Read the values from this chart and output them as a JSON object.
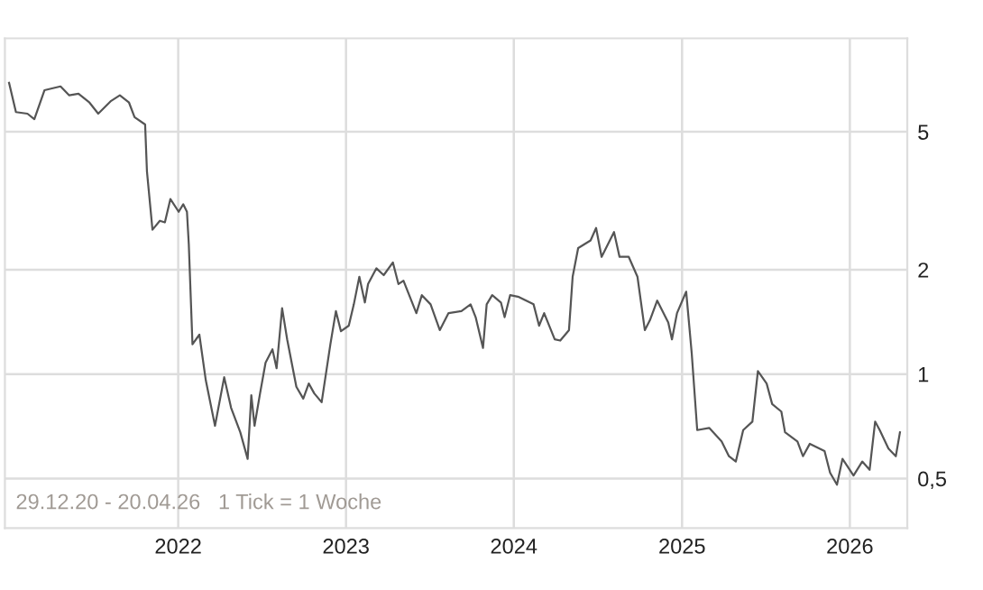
{
  "chart_data": {
    "type": "line",
    "log": "y",
    "grid": true,
    "marker": "none",
    "line_style": "solid",
    "annotations": [
      "29.12.20 - 20.04.26",
      "1 Tick = 1 Woche"
    ],
    "xlim": [
      "2020-12-20",
      "2026-05-06"
    ],
    "xticks": [
      {
        "value": "2022-01-01",
        "label": "2022"
      },
      {
        "value": "2023-01-01",
        "label": "2023"
      },
      {
        "value": "2024-01-01",
        "label": "2024"
      },
      {
        "value": "2025-01-01",
        "label": "2025"
      },
      {
        "value": "2026-01-01",
        "label": "2026"
      }
    ],
    "ylim": [
      0.36,
      9.3
    ],
    "yticks": [
      {
        "value": 0.5,
        "label": "0,5"
      },
      1,
      2,
      5
    ],
    "series": [
      {
        "color": "#555555",
        "x": [
          "2020-12-29",
          "2021-01-13",
          "2021-02-07",
          "2021-02-22",
          "2021-03-16",
          "2021-04-20",
          "2021-05-09",
          "2021-05-29",
          "2021-06-22",
          "2021-07-11",
          "2021-08-08",
          "2021-08-27",
          "2021-09-16",
          "2021-09-28",
          "2021-10-21",
          "2021-10-25",
          "2021-11-06",
          "2021-11-22",
          "2021-12-03",
          "2021-12-15",
          "2022-01-02",
          "2022-01-12",
          "2022-01-20",
          "2022-01-24",
          "2022-02-01",
          "2022-02-16",
          "2022-03-02",
          "2022-03-22",
          "2022-04-11",
          "2022-04-26",
          "2022-05-16",
          "2022-06-01",
          "2022-06-09",
          "2022-06-16",
          "2022-06-28",
          "2022-07-10",
          "2022-07-25",
          "2022-08-03",
          "2022-08-15",
          "2022-08-26",
          "2022-09-15",
          "2022-09-30",
          "2022-10-12",
          "2022-10-24",
          "2022-11-09",
          "2022-11-28",
          "2022-12-10",
          "2022-12-21",
          "2023-01-07",
          "2023-01-18",
          "2023-01-30",
          "2023-02-11",
          "2023-02-18",
          "2023-03-08",
          "2023-03-24",
          "2023-04-13",
          "2023-04-25",
          "2023-05-06",
          "2023-06-03",
          "2023-06-15",
          "2023-07-04",
          "2023-07-24",
          "2023-08-12",
          "2023-09-09",
          "2023-09-29",
          "2023-10-10",
          "2023-10-26",
          "2023-11-03",
          "2023-11-15",
          "2023-12-04",
          "2023-12-12",
          "2023-12-24",
          "2024-01-12",
          "2024-02-13",
          "2024-02-25",
          "2024-03-07",
          "2024-03-30",
          "2024-04-11",
          "2024-04-30",
          "2024-05-08",
          "2024-05-20",
          "2024-06-16",
          "2024-06-28",
          "2024-07-10",
          "2024-08-06",
          "2024-08-18",
          "2024-09-07",
          "2024-09-26",
          "2024-10-12",
          "2024-10-23",
          "2024-11-08",
          "2024-12-02",
          "2024-12-10",
          "2024-12-21",
          "2025-01-10",
          "2025-01-22",
          "2025-02-03",
          "2025-03-01",
          "2025-03-28",
          "2025-04-13",
          "2025-04-28",
          "2025-05-14",
          "2025-06-03",
          "2025-06-15",
          "2025-07-04",
          "2025-07-16",
          "2025-08-05",
          "2025-08-13",
          "2025-09-09",
          "2025-09-21",
          "2025-10-06",
          "2025-11-07",
          "2025-11-19",
          "2025-12-04",
          "2025-12-16",
          "2026-01-09",
          "2026-01-28",
          "2026-02-13",
          "2026-02-25",
          "2026-03-07",
          "2026-03-26",
          "2026-04-11",
          "2026-04-20"
        ],
        "values": [
          6.92,
          5.7,
          5.64,
          5.44,
          6.59,
          6.76,
          6.37,
          6.44,
          6.07,
          5.64,
          6.14,
          6.37,
          6.07,
          5.51,
          5.25,
          3.84,
          2.61,
          2.77,
          2.74,
          3.2,
          2.94,
          3.09,
          2.94,
          2.37,
          1.22,
          1.3,
          0.96,
          0.71,
          0.98,
          0.8,
          0.68,
          0.57,
          0.87,
          0.71,
          0.88,
          1.08,
          1.18,
          1.04,
          1.55,
          1.26,
          0.92,
          0.85,
          0.94,
          0.88,
          0.83,
          1.22,
          1.52,
          1.33,
          1.38,
          1.59,
          1.91,
          1.61,
          1.82,
          2.02,
          1.93,
          2.1,
          1.82,
          1.86,
          1.5,
          1.69,
          1.59,
          1.34,
          1.5,
          1.52,
          1.59,
          1.46,
          1.19,
          1.59,
          1.69,
          1.61,
          1.46,
          1.69,
          1.67,
          1.59,
          1.38,
          1.5,
          1.26,
          1.25,
          1.34,
          1.91,
          2.31,
          2.43,
          2.64,
          2.18,
          2.57,
          2.18,
          2.18,
          1.91,
          1.34,
          1.43,
          1.63,
          1.41,
          1.26,
          1.5,
          1.73,
          1.15,
          0.69,
          0.7,
          0.64,
          0.58,
          0.56,
          0.69,
          0.73,
          1.02,
          0.94,
          0.82,
          0.78,
          0.68,
          0.64,
          0.58,
          0.63,
          0.6,
          0.52,
          0.48,
          0.57,
          0.51,
          0.56,
          0.53,
          0.73,
          0.69,
          0.61,
          0.58,
          0.68
        ]
      }
    ]
  }
}
